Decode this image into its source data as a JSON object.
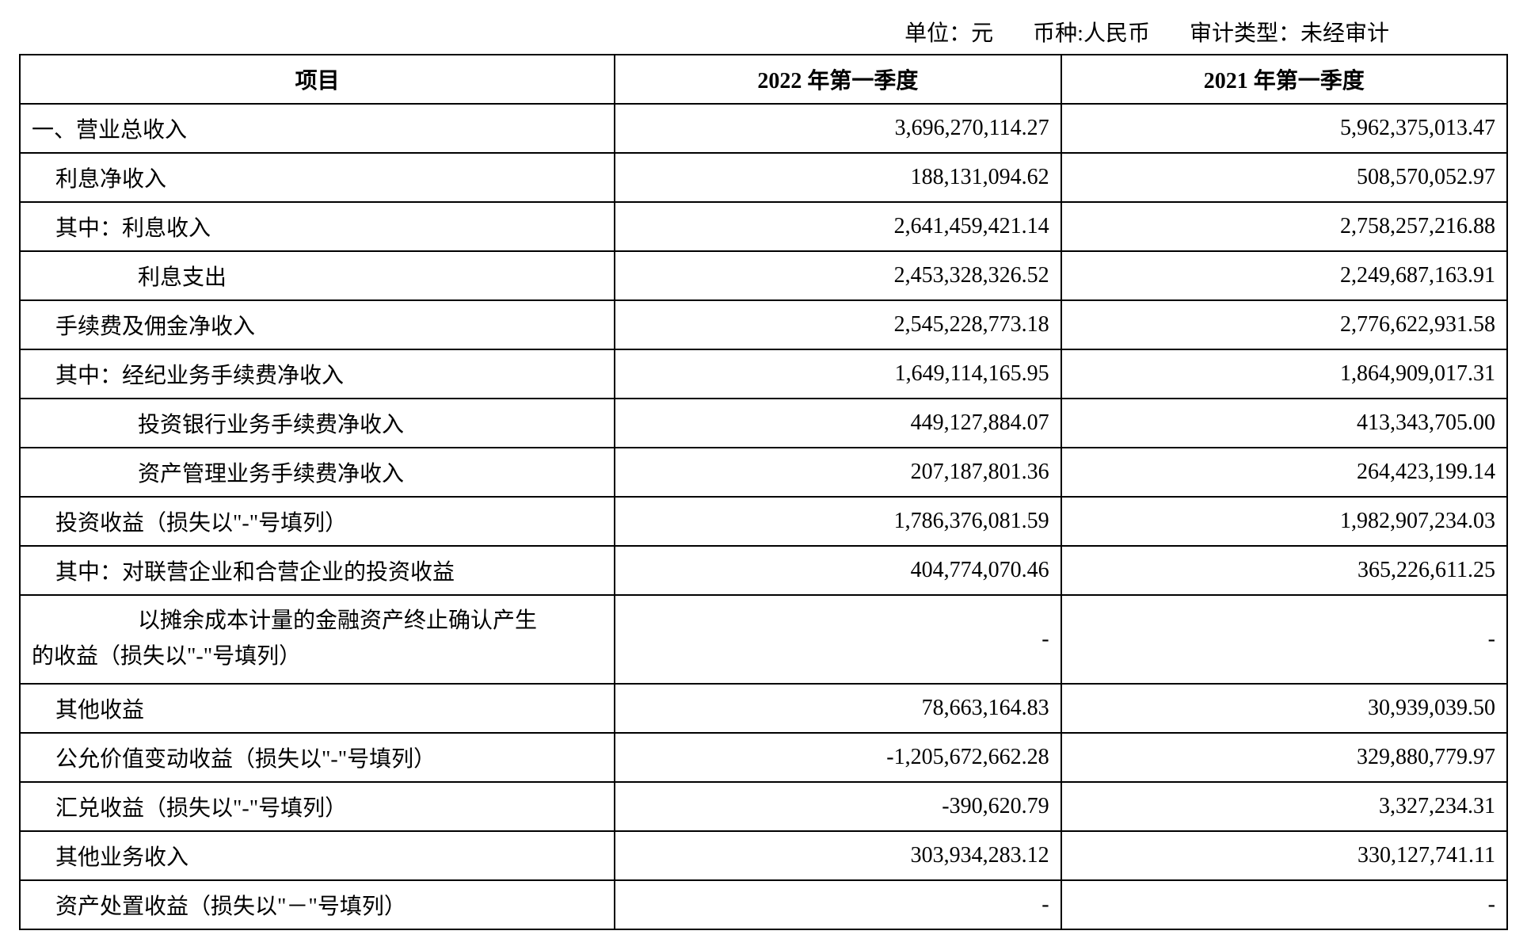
{
  "header": {
    "unit_label": "单位：",
    "unit_value": "元",
    "currency_label": "币种:",
    "currency_value": "人民币",
    "audit_label": "审计类型：",
    "audit_value": "未经审计"
  },
  "table": {
    "columns": {
      "item": "项目",
      "q1_2022": "2022 年第一季度",
      "q1_2021": "2021 年第一季度"
    },
    "rows": [
      {
        "label": "一、营业总收入",
        "indent": 0,
        "v2022": "3,696,270,114.27",
        "v2021": "5,962,375,013.47"
      },
      {
        "label": "利息净收入",
        "indent": 1,
        "v2022": "188,131,094.62",
        "v2021": "508,570,052.97"
      },
      {
        "label": "其中：利息收入",
        "indent": 2,
        "v2022": "2,641,459,421.14",
        "v2021": "2,758,257,216.88"
      },
      {
        "label": "利息支出",
        "indent": 3,
        "v2022": "2,453,328,326.52",
        "v2021": "2,249,687,163.91"
      },
      {
        "label": "手续费及佣金净收入",
        "indent": 1,
        "v2022": "2,545,228,773.18",
        "v2021": "2,776,622,931.58"
      },
      {
        "label": "其中：经纪业务手续费净收入",
        "indent": 2,
        "v2022": "1,649,114,165.95",
        "v2021": "1,864,909,017.31"
      },
      {
        "label": "投资银行业务手续费净收入",
        "indent": 3,
        "v2022": "449,127,884.07",
        "v2021": "413,343,705.00"
      },
      {
        "label": "资产管理业务手续费净收入",
        "indent": 3,
        "v2022": "207,187,801.36",
        "v2021": "264,423,199.14"
      },
      {
        "label": "投资收益（损失以\"-\"号填列）",
        "indent": 1,
        "v2022": "1,786,376,081.59",
        "v2021": "1,982,907,234.03"
      },
      {
        "label": "其中：对联营企业和合营企业的投资收益",
        "indent": 2,
        "v2022": "404,774,070.46",
        "v2021": "365,226,611.25"
      },
      {
        "label_multi": [
          "以摊余成本计量的金融资产终止确认产生",
          "的收益（损失以\"-\"号填列）"
        ],
        "indent": "multi",
        "v2022": "-",
        "v2021": "-"
      },
      {
        "label": "其他收益",
        "indent": 1,
        "v2022": "78,663,164.83",
        "v2021": "30,939,039.50"
      },
      {
        "label": "公允价值变动收益（损失以\"-\"号填列）",
        "indent": 1,
        "v2022": "-1,205,672,662.28",
        "v2021": "329,880,779.97"
      },
      {
        "label": "汇兑收益（损失以\"-\"号填列）",
        "indent": 1,
        "v2022": "-390,620.79",
        "v2021": "3,327,234.31"
      },
      {
        "label": "其他业务收入",
        "indent": 1,
        "v2022": "303,934,283.12",
        "v2021": "330,127,741.11"
      },
      {
        "label": "资产处置收益（损失以\"－\"号填列）",
        "indent": 1,
        "v2022": "-",
        "v2021": "-"
      }
    ]
  }
}
